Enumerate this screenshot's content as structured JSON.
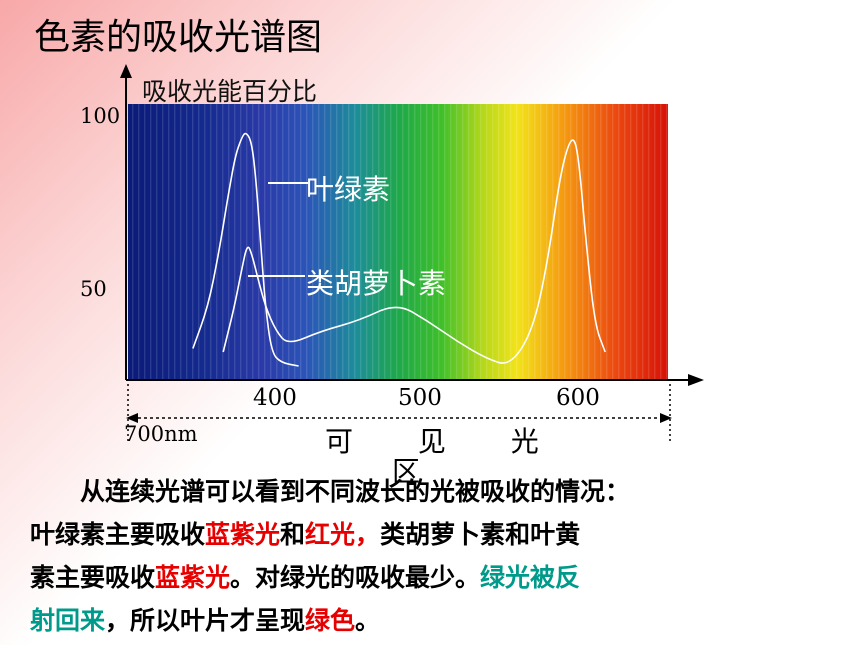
{
  "page_title": "色素的吸收光谱图",
  "chart_data": {
    "type": "line",
    "ylabel": "吸收光能百分比",
    "yticks": [
      "100",
      "50"
    ],
    "xticks": [
      "400",
      "500",
      "600"
    ],
    "x_unit_label": "700nm",
    "x_caption_line1": "可 见 光",
    "x_caption_line2": "区",
    "ylim": [
      0,
      100
    ],
    "xlim": [
      330,
      660
    ],
    "series": [
      {
        "name": "叶绿素",
        "points": [
          [
            345,
            33
          ],
          [
            355,
            45
          ],
          [
            362,
            60
          ],
          [
            368,
            76
          ],
          [
            373,
            88
          ],
          [
            377,
            93
          ],
          [
            380,
            95
          ],
          [
            384,
            92
          ],
          [
            387,
            80
          ],
          [
            390,
            62
          ],
          [
            393,
            45
          ],
          [
            397,
            32
          ],
          [
            403,
            29
          ],
          [
            415,
            28
          ]
        ]
      },
      {
        "name": "类胡萝卜素",
        "points": [
          [
            365,
            32
          ],
          [
            372,
            44
          ],
          [
            377,
            55
          ],
          [
            381,
            63
          ],
          [
            384,
            60
          ],
          [
            388,
            53
          ],
          [
            393,
            45
          ],
          [
            400,
            38
          ],
          [
            408,
            34
          ],
          [
            430,
            38
          ],
          [
            455,
            41
          ],
          [
            480,
            46
          ],
          [
            500,
            41
          ],
          [
            520,
            35
          ],
          [
            540,
            30
          ],
          [
            555,
            28
          ],
          [
            570,
            38
          ],
          [
            580,
            58
          ],
          [
            588,
            82
          ],
          [
            594,
            92
          ],
          [
            598,
            93
          ],
          [
            601,
            85
          ],
          [
            605,
            65
          ],
          [
            611,
            40
          ],
          [
            618,
            32
          ]
        ]
      }
    ]
  },
  "explanation": {
    "line1": "从连续光谱可以看到不同波长的光被吸收的情况：",
    "line2_a": "叶绿素主要吸收",
    "line2_b": "蓝紫光",
    "line2_c": "和",
    "line2_d": "红光，",
    "line2_e": "类胡萝卜素和叶黄",
    "line3_a": "素主要吸收",
    "line3_b": "蓝紫光",
    "line3_c": "。对绿光的吸收最少。",
    "line3_d": "绿光被反",
    "line4_a": "射回来",
    "line4_b": "，所以叶片才呈现",
    "line4_c": "绿色",
    "line4_d": "。"
  },
  "colors": {
    "highlight_red": "#e60000",
    "highlight_teal": "#009a8a"
  }
}
